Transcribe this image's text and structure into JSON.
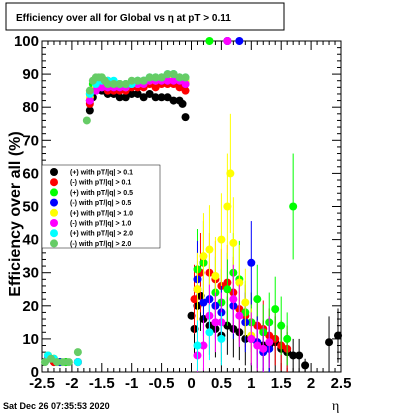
{
  "chart_data": {
    "type": "scatter",
    "title": "Efficiency over all for Global vs  η at pT > 0.11",
    "xlabel": "η",
    "ylabel": "Efficiency over all (%)",
    "xlim": [
      -2.5,
      2.5
    ],
    "ylim": [
      0,
      100
    ],
    "x_ticks": [
      "-2.5",
      "-2",
      "-1.5",
      "-1",
      "-0.5",
      "0",
      "0.5",
      "1",
      "1.5",
      "2",
      "2.5"
    ],
    "y_ticks": [
      "0",
      "10",
      "20",
      "30",
      "40",
      "50",
      "60",
      "70",
      "80",
      "90",
      "100"
    ],
    "footer_date": "Sat Dec 26 07:35:53 2020",
    "legend_position": "left-middle",
    "series": [
      {
        "name": "(+) with pT/|q| > 0.1",
        "color": "#000000",
        "x": [
          -2.4,
          -2.3,
          -2.2,
          -2.1,
          -1.9,
          -1.7,
          -1.65,
          -1.6,
          -1.55,
          -1.5,
          -1.45,
          -1.4,
          -1.3,
          -1.2,
          -1.1,
          -1.0,
          -0.9,
          -0.8,
          -0.7,
          -0.6,
          -0.5,
          -0.4,
          -0.3,
          -0.2,
          -0.15,
          -0.1,
          0.0,
          0.05,
          0.1,
          0.15,
          0.2,
          0.3,
          0.4,
          0.5,
          0.6,
          0.7,
          0.8,
          0.9,
          1.0,
          1.1,
          1.2,
          1.3,
          1.4,
          1.5,
          1.6,
          1.7,
          1.8,
          1.9,
          2.3,
          2.45
        ],
        "y": [
          4,
          3,
          3,
          3,
          3,
          79,
          83,
          85,
          86,
          85,
          85,
          84,
          84,
          83,
          83,
          84,
          84,
          83,
          84,
          83,
          83,
          83,
          82,
          82,
          81,
          77,
          17,
          13,
          20,
          23,
          16,
          14,
          13,
          11,
          14,
          13,
          12,
          10,
          10,
          9,
          8,
          8,
          9,
          7,
          6,
          5,
          5,
          2,
          9,
          11
        ]
      },
      {
        "name": "(-) with pT/|q| > 0.1",
        "color": "#ff0000",
        "x": [
          -2.4,
          -2.3,
          -1.9,
          -1.7,
          -1.65,
          -1.6,
          -1.55,
          -1.5,
          -1.4,
          -1.3,
          -1.2,
          -1.1,
          -1.0,
          -0.9,
          -0.8,
          -0.7,
          -0.6,
          -0.5,
          -0.4,
          -0.3,
          -0.2,
          -0.1,
          0.05,
          0.1,
          0.15,
          0.2,
          0.3,
          0.4,
          0.5,
          0.6,
          0.7,
          0.8,
          0.9,
          1.0,
          1.1,
          1.2,
          1.3,
          1.4,
          1.5,
          1.6
        ],
        "y": [
          4,
          3,
          3,
          81,
          85,
          86,
          86,
          86,
          85,
          85,
          85,
          85,
          86,
          86,
          86,
          87,
          86,
          87,
          87,
          87,
          86,
          85,
          22,
          25,
          30,
          33,
          30,
          28,
          26,
          27,
          24,
          19,
          17,
          15,
          14,
          13,
          11,
          10,
          8,
          7
        ]
      },
      {
        "name": "(+) with pT/|q| > 0.5",
        "color": "#00ff00",
        "x": [
          -2.4,
          -2.3,
          -2.2,
          -2.1,
          -1.9,
          -1.7,
          -1.65,
          -1.6,
          -1.55,
          -1.5,
          -1.4,
          -1.3,
          -1.2,
          -1.1,
          -1.0,
          -0.9,
          -0.8,
          -0.7,
          -0.6,
          -0.5,
          -0.4,
          -0.3,
          -0.2,
          -0.1,
          0.1,
          0.2,
          0.3,
          0.4,
          0.5,
          0.6,
          0.7,
          0.8,
          0.9,
          1.0,
          1.1,
          1.2,
          1.3,
          1.4,
          1.5,
          1.6,
          1.7
        ],
        "y": [
          5,
          4,
          3,
          3,
          3,
          84,
          87,
          88,
          88,
          89,
          88,
          87,
          87,
          86,
          87,
          88,
          88,
          89,
          89,
          89,
          89,
          90,
          89,
          88,
          31,
          33,
          100,
          24,
          21,
          25,
          30,
          28,
          18,
          15,
          22,
          12,
          15,
          19,
          14,
          10,
          50
        ]
      },
      {
        "name": "(-) with pT/|q| > 0.5",
        "color": "#0000ff",
        "x": [
          -2.4,
          -2.2,
          -1.9,
          -1.7,
          -1.6,
          -1.5,
          -1.4,
          -1.3,
          -1.2,
          -1.1,
          -1.0,
          -0.9,
          -0.8,
          -0.7,
          -0.6,
          -0.5,
          -0.4,
          -0.3,
          -0.2,
          -0.1,
          0.1,
          0.2,
          0.3,
          0.4,
          0.5,
          0.6,
          0.7,
          0.8,
          0.9,
          1.0,
          1.1,
          1.2,
          1.3
        ],
        "y": [
          4,
          3,
          3,
          82,
          85,
          86,
          86,
          86,
          86,
          86,
          87,
          87,
          88,
          88,
          88,
          88,
          88,
          88,
          88,
          87,
          28,
          21,
          22,
          20,
          18,
          100,
          20,
          100,
          15,
          33,
          9,
          6,
          7
        ]
      },
      {
        "name": "(+) with pT/|q| > 1.0",
        "color": "#ffff00",
        "x": [
          -2.4,
          -2.3,
          -1.9,
          -1.7,
          -1.6,
          -1.5,
          -1.4,
          -1.3,
          -1.2,
          -1.1,
          -1.0,
          -0.9,
          -0.8,
          -0.7,
          -0.6,
          -0.5,
          -0.4,
          -0.3,
          -0.2,
          -0.1,
          0.1,
          0.2,
          0.3,
          0.4,
          0.5,
          0.6,
          0.65,
          0.7,
          0.8,
          0.9,
          1.0
        ],
        "y": [
          5,
          4,
          3,
          83,
          86,
          87,
          87,
          87,
          87,
          86,
          87,
          87,
          88,
          88,
          88,
          89,
          89,
          89,
          89,
          88,
          25,
          35,
          37,
          29,
          40,
          50,
          60,
          39,
          27,
          21,
          11
        ]
      },
      {
        "name": "(-) with pT/|q| > 1.0",
        "color": "#ff00ff",
        "x": [
          -2.4,
          -1.9,
          -1.7,
          -1.6,
          -1.5,
          -1.4,
          -1.3,
          -1.2,
          -1.1,
          -1.0,
          -0.9,
          -0.8,
          -0.7,
          -0.6,
          -0.5,
          -0.4,
          -0.3,
          -0.2,
          -0.1,
          0.1,
          0.2,
          0.3,
          0.4,
          0.5,
          0.6,
          0.7,
          0.8,
          1.0,
          1.1,
          1.2,
          1.3
        ],
        "y": [
          4,
          3,
          82,
          85,
          86,
          86,
          86,
          86,
          86,
          87,
          87,
          87,
          88,
          88,
          88,
          88,
          88,
          88,
          87,
          5,
          8,
          17,
          15,
          15,
          100,
          22,
          17,
          10,
          8,
          7,
          9
        ]
      },
      {
        "name": "(+) with pT/|q| > 2.0",
        "color": "#00ffff",
        "x": [
          -2.4,
          -2.3,
          -1.9,
          -1.7,
          -1.6,
          -1.5,
          -1.4,
          -1.3,
          -1.2,
          -1.1,
          -1.0,
          -0.9,
          -0.8,
          -0.7,
          -0.6,
          -0.5,
          -0.4,
          -0.3,
          -0.2,
          -0.1,
          0.1,
          0.3,
          0.5
        ],
        "y": [
          5,
          4,
          3,
          84,
          87,
          88,
          88,
          88,
          87,
          87,
          87,
          88,
          88,
          89,
          89,
          89,
          90,
          90,
          89,
          89,
          8,
          12,
          10
        ]
      },
      {
        "name": "(-) with pT/|q| > 2.0",
        "color": "#66cc66",
        "x": [
          -2.45,
          -2.35,
          -2.25,
          -2.15,
          -2.05,
          -1.9,
          -1.75,
          -1.7,
          -1.65,
          -1.6,
          -1.55,
          -1.5,
          -1.45,
          -1.4,
          -1.3,
          -1.2,
          -1.1,
          -1.0,
          -0.9,
          -0.8,
          -0.7,
          -0.6,
          -0.5,
          -0.4,
          -0.3,
          -0.2,
          -0.1
        ],
        "y": [
          3,
          4,
          3,
          3,
          3,
          6,
          76,
          85,
          88,
          89,
          89,
          89,
          88,
          87,
          87,
          87,
          87,
          88,
          88,
          88,
          89,
          89,
          89,
          90,
          90,
          89,
          89
        ]
      }
    ]
  }
}
